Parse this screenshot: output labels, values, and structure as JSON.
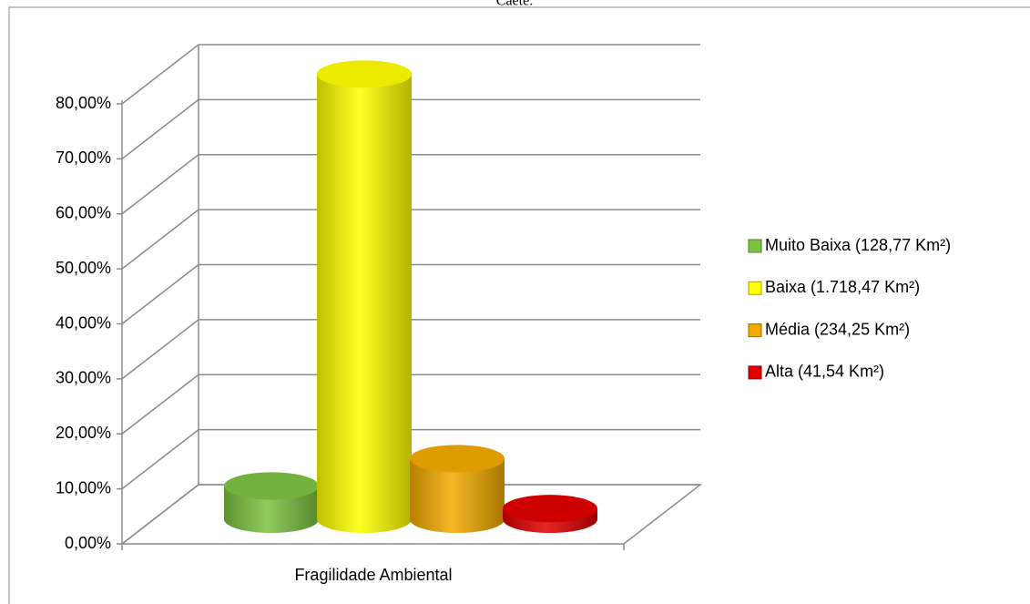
{
  "chart_data": {
    "type": "bar3d-cylinder",
    "title": "Caeté.",
    "categories": [
      "Fragilidade Ambiental"
    ],
    "series": [
      {
        "name": "Muito Baixa (128,77 Km²)",
        "color": "#7cc242",
        "values": [
          6.07
        ]
      },
      {
        "name": "Baixa (1.718,47 Km²)",
        "color": "#ffff00",
        "values": [
          80.94
        ]
      },
      {
        "name": "Média (234,25 Km²)",
        "color": "#f2aa00",
        "values": [
          11.03
        ]
      },
      {
        "name": "Alta (41,54 Km²)",
        "color": "#e00000",
        "values": [
          1.96
        ]
      }
    ],
    "ylim": [
      0,
      80
    ],
    "yticks": [
      {
        "value": 0,
        "label": "0,00%"
      },
      {
        "value": 10,
        "label": "10,00%"
      },
      {
        "value": 20,
        "label": "20,00%"
      },
      {
        "value": 30,
        "label": "30,00%"
      },
      {
        "value": 40,
        "label": "40,00%"
      },
      {
        "value": 50,
        "label": "50,00%"
      },
      {
        "value": 60,
        "label": "60,00%"
      },
      {
        "value": 70,
        "label": "70,00%"
      },
      {
        "value": 80,
        "label": "80,00%"
      }
    ],
    "grid": true,
    "legend": "right"
  }
}
